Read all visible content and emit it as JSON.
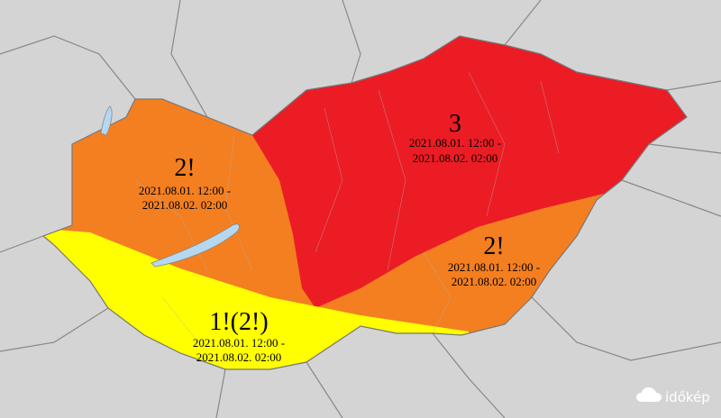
{
  "zones": [
    {
      "level": "3",
      "from": "2021.08.01. 12:00 -",
      "to": "2021.08.02. 02:00"
    },
    {
      "level": "2!",
      "from": "2021.08.01. 12:00 -",
      "to": "2021.08.02. 02:00"
    },
    {
      "level": "2!",
      "from": "2021.08.01. 12:00 -",
      "to": "2021.08.02. 02:00"
    },
    {
      "level": "1!(2!)",
      "from": "2021.08.01. 12:00 -",
      "to": "2021.08.02. 02:00"
    }
  ],
  "logo": "időkép"
}
